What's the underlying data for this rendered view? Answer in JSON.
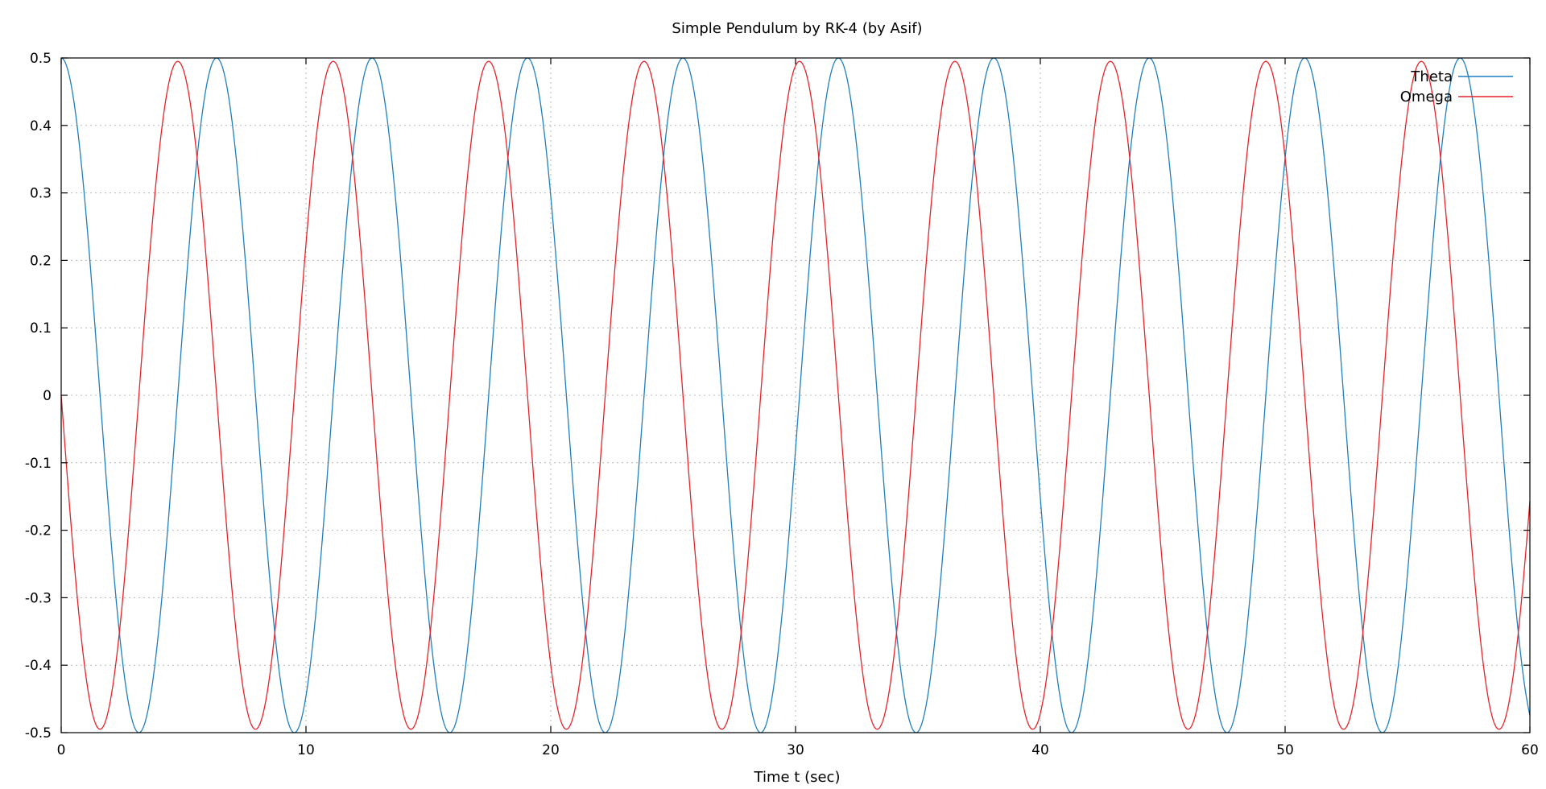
{
  "chart_data": {
    "type": "line",
    "title": "Simple Pendulum by RK-4 (by Asif)",
    "xlabel": "Time t (sec)",
    "ylabel": "",
    "xlim": [
      0,
      60
    ],
    "ylim": [
      -0.5,
      0.5
    ],
    "xticks": [
      0,
      10,
      20,
      30,
      40,
      50,
      60
    ],
    "yticks": [
      0.5,
      0.4,
      0.3,
      0.2,
      0.1,
      0,
      -0.1,
      -0.2,
      -0.3,
      -0.4,
      -0.5
    ],
    "ytick_labels": [
      "0.5",
      "0.4",
      "0.3",
      "0.2",
      "0.1",
      "0",
      "-0.1",
      "-0.2",
      "-0.3",
      "-0.4",
      "-0.5"
    ],
    "xtick_labels": [
      "0",
      "10",
      "20",
      "30",
      "40",
      "50",
      "60"
    ],
    "grid": true,
    "legend_position": "top-right",
    "series": [
      {
        "name": "Theta",
        "color": "#1f7fbf",
        "model": "cosine",
        "amplitude": 0.5,
        "period": 6.35,
        "x": [
          0,
          3.175,
          6.35,
          9.525,
          12.7,
          15.875,
          19.05,
          22.225,
          25.4,
          28.575,
          31.75,
          34.925,
          38.1,
          41.275,
          44.45,
          47.625,
          50.8,
          53.975,
          57.15,
          60
        ],
        "values": [
          0.5,
          -0.5,
          0.5,
          -0.5,
          0.5,
          -0.5,
          0.5,
          -0.5,
          0.5,
          -0.5,
          0.5,
          -0.5,
          0.5,
          -0.5,
          0.5,
          -0.5,
          0.5,
          -0.5,
          0.5,
          -0.41
        ]
      },
      {
        "name": "Omega",
        "color": "#e8222a",
        "model": "negative-sine",
        "amplitude": 0.495,
        "period": 6.35,
        "x": [
          0,
          1.5875,
          4.7625,
          7.9375,
          11.1125,
          14.2875,
          17.4625,
          20.6375,
          23.8125,
          26.9875,
          30.1625,
          33.3375,
          36.5125,
          39.6875,
          42.8625,
          46.0375,
          49.2125,
          52.3875,
          55.5625,
          58.7375,
          60
        ],
        "values": [
          0,
          -0.495,
          0.495,
          -0.495,
          0.495,
          -0.495,
          0.495,
          -0.495,
          0.495,
          -0.495,
          0.495,
          -0.495,
          0.495,
          -0.495,
          0.495,
          -0.495,
          0.495,
          -0.495,
          0.495,
          -0.495,
          -0.28
        ]
      }
    ]
  }
}
